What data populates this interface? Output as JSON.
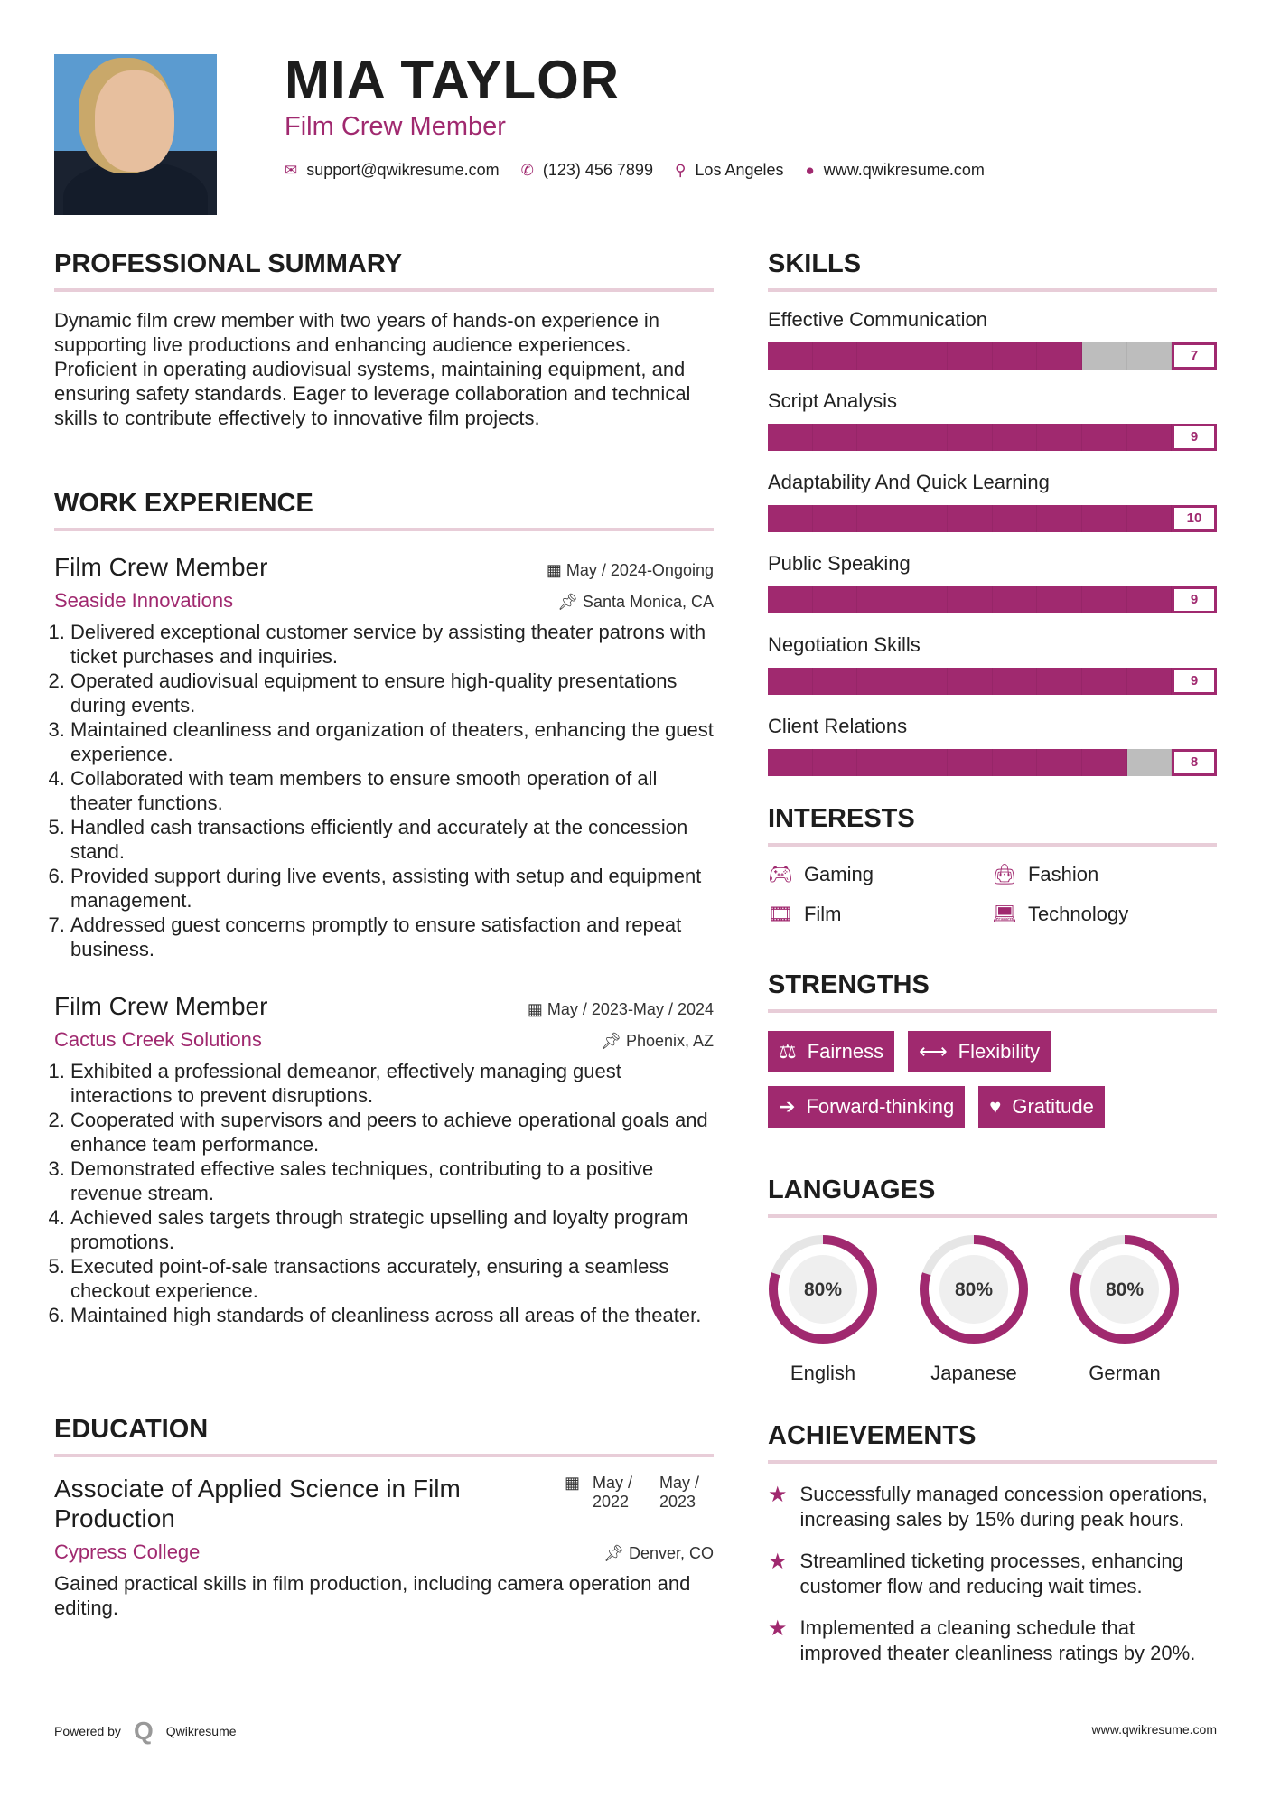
{
  "header": {
    "name": "MIA TAYLOR",
    "title": "Film Crew Member",
    "email": "support@qwikresume.com",
    "phone": "(123) 456 7899",
    "location": "Los Angeles",
    "website": "www.qwikresume.com"
  },
  "summary": {
    "heading": "PROFESSIONAL SUMMARY",
    "text": "Dynamic film crew member with two years of hands-on experience in supporting live productions and enhancing audience experiences. Proficient in operating audiovisual systems, maintaining equipment, and ensuring safety standards. Eager to leverage collaboration and technical skills to contribute effectively to innovative film projects."
  },
  "work": {
    "heading": "WORK EXPERIENCE",
    "jobs": [
      {
        "title": "Film Crew Member",
        "dates": "May / 2024-Ongoing",
        "company": "Seaside Innovations",
        "location": "Santa Monica, CA",
        "items": [
          "Delivered exceptional customer service by assisting theater patrons with ticket purchases and inquiries.",
          "Operated audiovisual equipment to ensure high-quality presentations during events.",
          "Maintained cleanliness and organization of theaters, enhancing the guest experience.",
          "Collaborated with team members to ensure smooth operation of all theater functions.",
          "Handled cash transactions efficiently and accurately at the concession stand.",
          "Provided support during live events, assisting with setup and equipment management.",
          "Addressed guest concerns promptly to ensure satisfaction and repeat business."
        ]
      },
      {
        "title": "Film Crew Member",
        "dates": "May / 2023-May / 2024",
        "company": "Cactus Creek Solutions",
        "location": "Phoenix, AZ",
        "items": [
          "Exhibited a professional demeanor, effectively managing guest interactions to prevent disruptions.",
          "Cooperated with supervisors and peers to achieve operational goals and enhance team performance.",
          "Demonstrated effective sales techniques, contributing to a positive revenue stream.",
          "Achieved sales targets through strategic upselling and loyalty program promotions.",
          "Executed point-of-sale transactions accurately, ensuring a seamless checkout experience.",
          "Maintained high standards of cleanliness across all areas of the theater."
        ]
      }
    ]
  },
  "education": {
    "heading": "EDUCATION",
    "degree": "Associate of Applied Science in Film Production",
    "start": "May / 2022",
    "end": "May / 2023",
    "school": "Cypress College",
    "location": "Denver, CO",
    "text": "Gained practical skills in film production, including camera operation and editing."
  },
  "skills": {
    "heading": "SKILLS",
    "max": 10,
    "items": [
      {
        "label": "Effective Communication",
        "value": 7
      },
      {
        "label": "Script Analysis",
        "value": 9
      },
      {
        "label": "Adaptability And Quick Learning",
        "value": 10
      },
      {
        "label": "Public Speaking",
        "value": 9
      },
      {
        "label": "Negotiation Skills",
        "value": 9
      },
      {
        "label": "Client Relations",
        "value": 8
      }
    ]
  },
  "interests": {
    "heading": "INTERESTS",
    "items": [
      {
        "label": "Gaming",
        "icon": "gamepad-icon"
      },
      {
        "label": "Fashion",
        "icon": "shopping-bag-icon"
      },
      {
        "label": "Film",
        "icon": "film-icon"
      },
      {
        "label": "Technology",
        "icon": "laptop-icon"
      }
    ]
  },
  "strengths": {
    "heading": "STRENGTHS",
    "items": [
      {
        "label": "Fairness",
        "icon": "balance-scale-icon"
      },
      {
        "label": "Flexibility",
        "icon": "arrows-horizontal-icon"
      },
      {
        "label": "Forward-thinking",
        "icon": "arrow-right-icon"
      },
      {
        "label": "Gratitude",
        "icon": "heart-icon"
      }
    ]
  },
  "languages": {
    "heading": "LANGUAGES",
    "items": [
      {
        "label": "English",
        "percent": 80,
        "text": "80%"
      },
      {
        "label": "Japanese",
        "percent": 80,
        "text": "80%"
      },
      {
        "label": "German",
        "percent": 80,
        "text": "80%"
      }
    ]
  },
  "achievements": {
    "heading": "ACHIEVEMENTS",
    "items": [
      "Successfully managed concession operations, increasing sales by 15% during peak hours.",
      "Streamlined ticketing processes, enhancing customer flow and reducing wait times.",
      "Implemented a cleaning schedule that improved theater cleanliness ratings by 20%."
    ]
  },
  "footer": {
    "powered": "Powered by",
    "brand": "Qwikresume",
    "site": "www.qwikresume.com"
  },
  "colors": {
    "accent": "#a0296f",
    "track": "#bdbdbd",
    "divider": "#e8cdd8"
  }
}
